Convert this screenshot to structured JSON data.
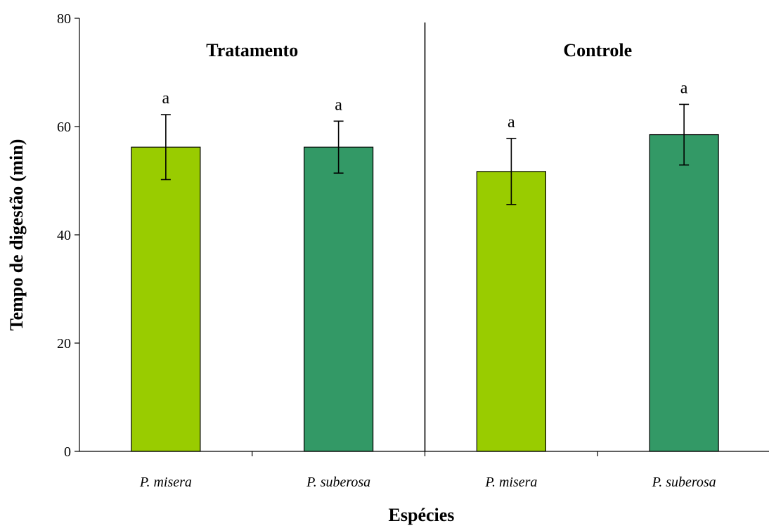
{
  "chart_data": {
    "type": "bar",
    "title": "",
    "xlabel": "Espécies",
    "ylabel": "Tempo de digestão (min)",
    "ylim": [
      0,
      80
    ],
    "yticks": [
      0,
      20,
      40,
      60,
      80
    ],
    "grid": false,
    "groups": [
      "Tratamento",
      "Controle"
    ],
    "categories": [
      "P. misera",
      "P. suberosa",
      "P. misera",
      "P. suberosa"
    ],
    "category_group": [
      "Tratamento",
      "Tratamento",
      "Controle",
      "Controle"
    ],
    "values": [
      56.2,
      56.2,
      51.7,
      58.5
    ],
    "error": [
      6.0,
      4.8,
      6.1,
      5.6
    ],
    "significance_labels": [
      "a",
      "a",
      "a",
      "a"
    ],
    "colors": [
      "#99cc00",
      "#339966",
      "#99cc00",
      "#339966"
    ]
  }
}
